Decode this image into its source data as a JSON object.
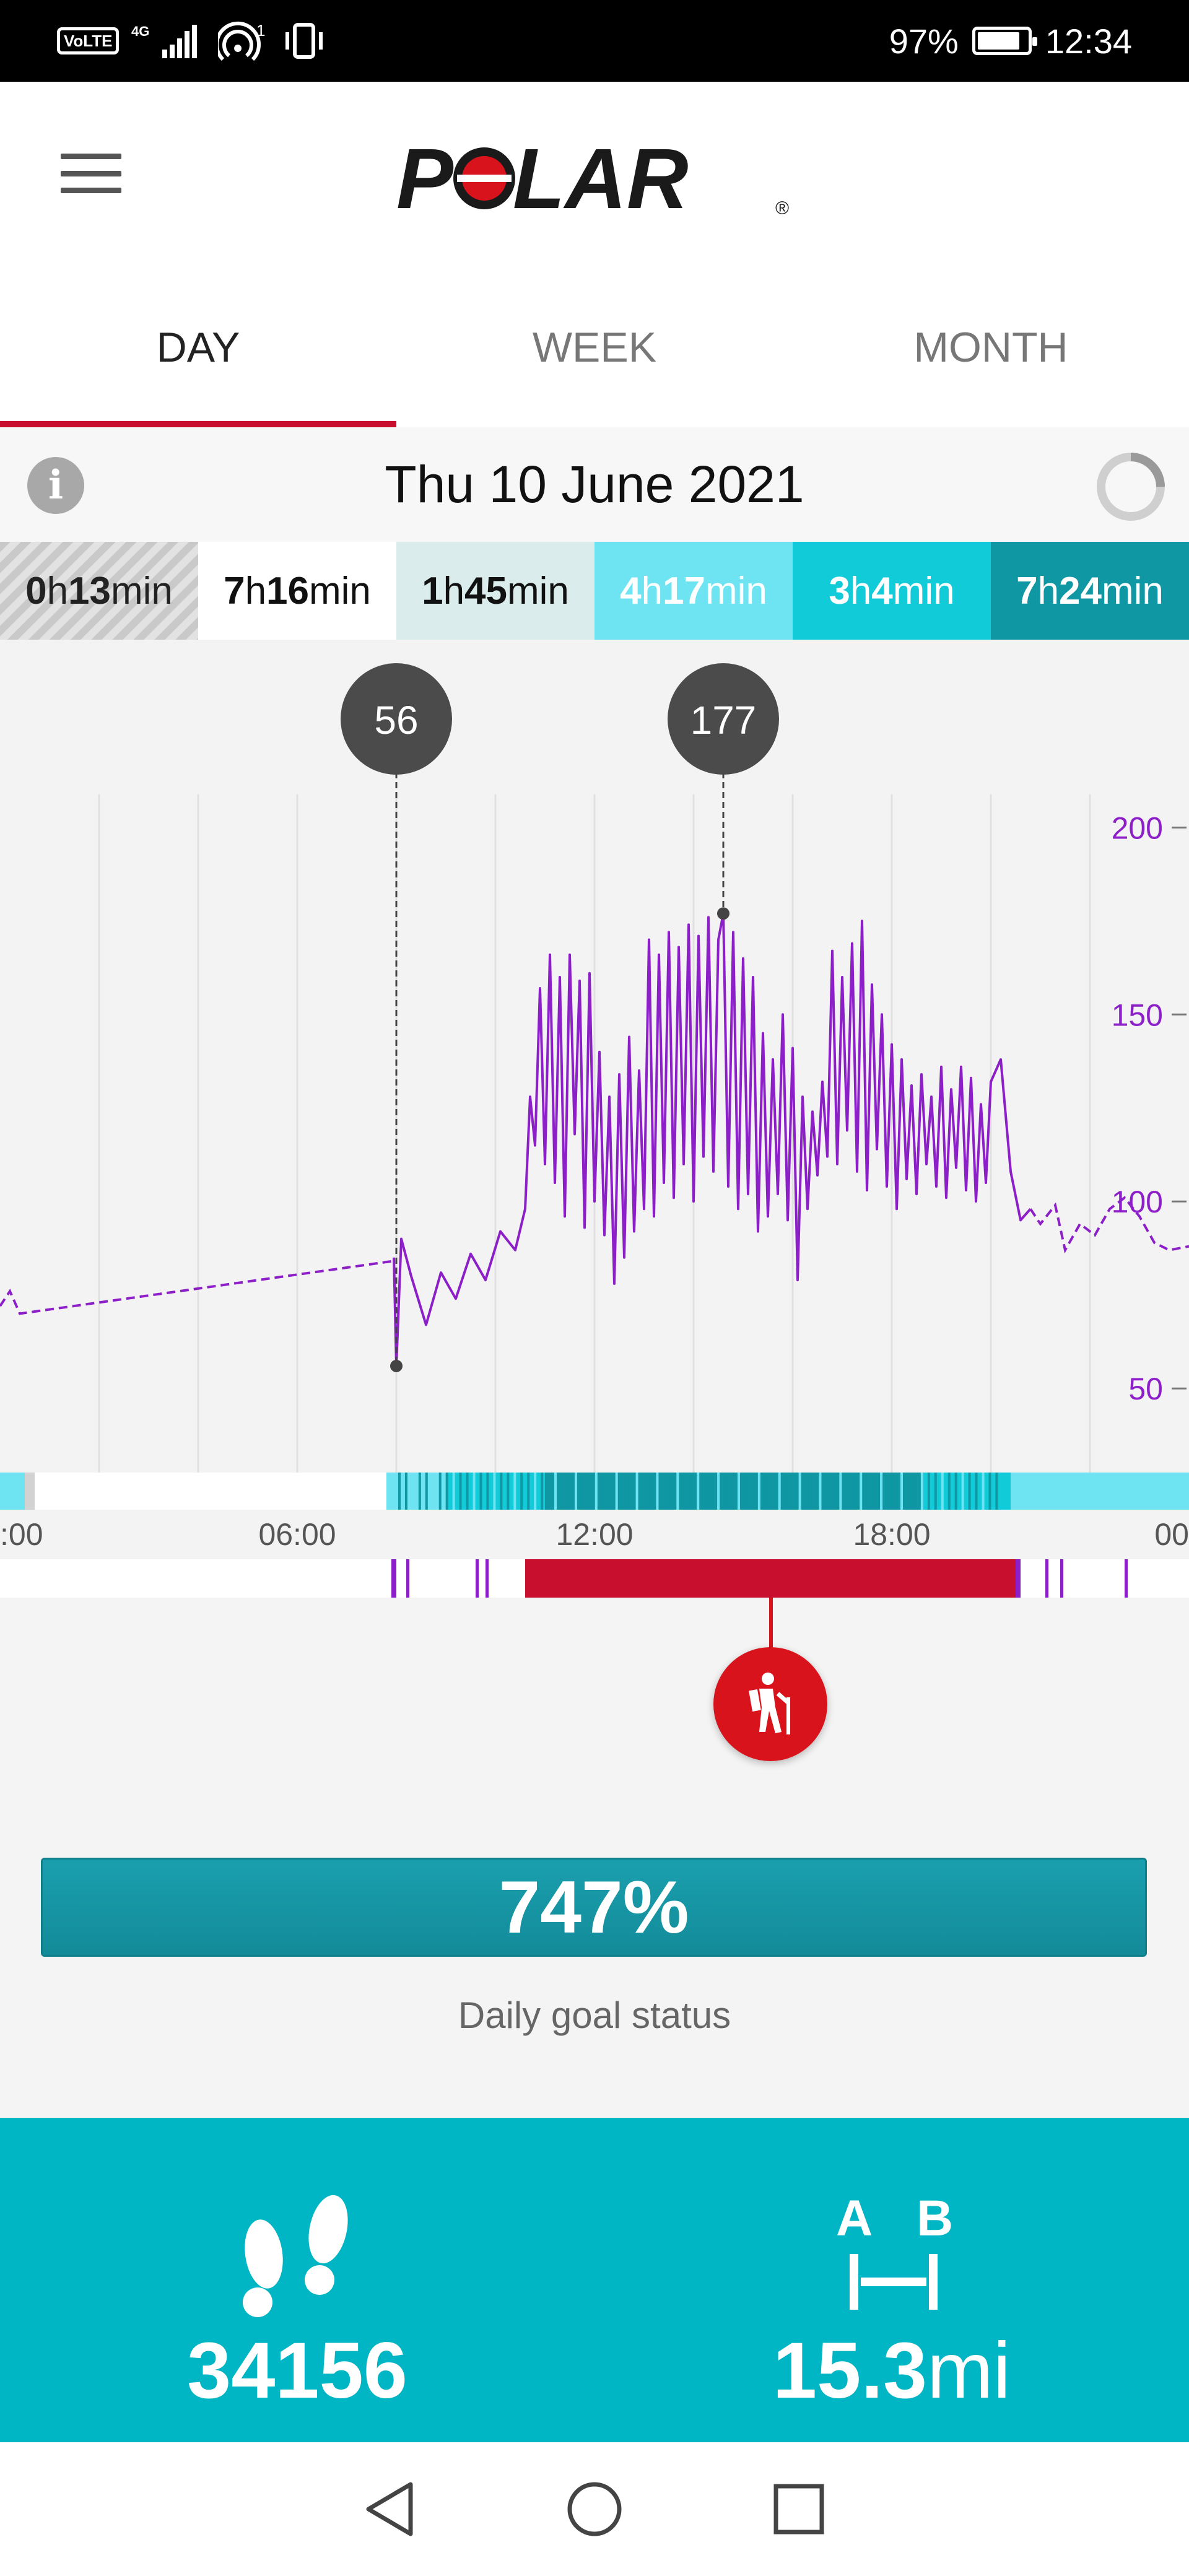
{
  "status_bar": {
    "volte": "VoLTE",
    "network": "4G",
    "hotspot_count": "1",
    "battery": "97%",
    "battery_level": 0.97,
    "time": "12:34"
  },
  "header": {
    "logo_text": "POLAR",
    "logo_mark": "®",
    "menu_icon": "hamburger-menu-icon"
  },
  "tabs": [
    {
      "label": "DAY",
      "active": true
    },
    {
      "label": "WEEK",
      "active": false
    },
    {
      "label": "MONTH",
      "active": false
    }
  ],
  "date_row": {
    "info_icon": "info-icon",
    "date": "Thu 10 June 2021",
    "sync_icon": "sync-icon"
  },
  "zones": [
    {
      "hours": "0",
      "h": "h",
      "minutes": "13",
      "unit": "min",
      "bg": "#d2d2d2",
      "fg": "#222"
    },
    {
      "hours": "7",
      "h": "h",
      "minutes": "16",
      "unit": "min",
      "bg": "#ffffff",
      "fg": "#111"
    },
    {
      "hours": "1",
      "h": "h",
      "minutes": "45",
      "unit": "min",
      "bg": "#dbecec",
      "fg": "#111"
    },
    {
      "hours": "4",
      "h": "h",
      "minutes": "17",
      "unit": "min",
      "bg": "#6ee4f2",
      "fg": "#ffffff"
    },
    {
      "hours": "3",
      "h": "h",
      "minutes": "4",
      "unit": "min",
      "bg": "#12cbd9",
      "fg": "#ffffff"
    },
    {
      "hours": "7",
      "h": "h",
      "minutes": "24",
      "unit": "min",
      "bg": "#0f97a3",
      "fg": "#ffffff"
    }
  ],
  "chart_data": {
    "type": "line",
    "title": "",
    "xlabel": "",
    "ylabel": "",
    "x_ticks": [
      ":00",
      "06:00",
      "12:00",
      "18:00",
      "00"
    ],
    "y_ticks": [
      200,
      150,
      100,
      50
    ],
    "ylim": [
      30,
      208
    ],
    "xlim_hours": [
      0,
      24
    ],
    "grid": "vertical",
    "series_color": "#8d1fc9",
    "markers": [
      {
        "label": "56",
        "time_hour": 8.0,
        "value": 56,
        "kind": "min"
      },
      {
        "label": "177",
        "time_hour": 14.6,
        "value": 177,
        "kind": "max"
      }
    ],
    "series": [
      {
        "values_dashed_start": [
          [
            0.0,
            72
          ],
          [
            0.2,
            76
          ],
          [
            0.4,
            70
          ],
          [
            7.9,
            84
          ]
        ],
        "values": [
          [
            7.95,
            85
          ],
          [
            8.0,
            56
          ],
          [
            8.1,
            90
          ],
          [
            8.3,
            80
          ],
          [
            8.6,
            67
          ],
          [
            8.9,
            81
          ],
          [
            9.2,
            74
          ],
          [
            9.5,
            86
          ],
          [
            9.8,
            79
          ],
          [
            10.1,
            92
          ],
          [
            10.4,
            87
          ],
          [
            10.6,
            98
          ],
          [
            10.7,
            128
          ],
          [
            10.8,
            115
          ],
          [
            10.9,
            157
          ],
          [
            11.0,
            110
          ],
          [
            11.1,
            166
          ],
          [
            11.2,
            105
          ],
          [
            11.3,
            160
          ],
          [
            11.4,
            96
          ],
          [
            11.5,
            166
          ],
          [
            11.6,
            118
          ],
          [
            11.7,
            159
          ],
          [
            11.8,
            93
          ],
          [
            11.9,
            161
          ],
          [
            12.0,
            100
          ],
          [
            12.1,
            140
          ],
          [
            12.2,
            91
          ],
          [
            12.3,
            128
          ],
          [
            12.4,
            78
          ],
          [
            12.5,
            134
          ],
          [
            12.6,
            85
          ],
          [
            12.7,
            144
          ],
          [
            12.8,
            92
          ],
          [
            12.9,
            135
          ],
          [
            13.0,
            98
          ],
          [
            13.1,
            170
          ],
          [
            13.2,
            96
          ],
          [
            13.3,
            166
          ],
          [
            13.4,
            105
          ],
          [
            13.5,
            172
          ],
          [
            13.6,
            101
          ],
          [
            13.7,
            168
          ],
          [
            13.8,
            110
          ],
          [
            13.9,
            174
          ],
          [
            14.0,
            100
          ],
          [
            14.1,
            171
          ],
          [
            14.2,
            112
          ],
          [
            14.3,
            176
          ],
          [
            14.4,
            108
          ],
          [
            14.5,
            170
          ],
          [
            14.6,
            177
          ],
          [
            14.7,
            104
          ],
          [
            14.8,
            172
          ],
          [
            14.9,
            98
          ],
          [
            15.0,
            165
          ],
          [
            15.1,
            102
          ],
          [
            15.2,
            160
          ],
          [
            15.3,
            92
          ],
          [
            15.4,
            145
          ],
          [
            15.5,
            96
          ],
          [
            15.6,
            138
          ],
          [
            15.7,
            102
          ],
          [
            15.8,
            150
          ],
          [
            15.9,
            95
          ],
          [
            16.0,
            141
          ],
          [
            16.1,
            79
          ],
          [
            16.2,
            128
          ],
          [
            16.3,
            98
          ],
          [
            16.4,
            124
          ],
          [
            16.5,
            107
          ],
          [
            16.6,
            132
          ],
          [
            16.7,
            112
          ],
          [
            16.8,
            167
          ],
          [
            16.9,
            110
          ],
          [
            17.0,
            160
          ],
          [
            17.1,
            119
          ],
          [
            17.2,
            169
          ],
          [
            17.3,
            108
          ],
          [
            17.4,
            175
          ],
          [
            17.5,
            103
          ],
          [
            17.6,
            158
          ],
          [
            17.7,
            114
          ],
          [
            17.8,
            150
          ],
          [
            17.9,
            104
          ],
          [
            18.0,
            142
          ],
          [
            18.1,
            98
          ],
          [
            18.2,
            138
          ],
          [
            18.3,
            106
          ],
          [
            18.4,
            131
          ],
          [
            18.5,
            102
          ],
          [
            18.6,
            134
          ],
          [
            18.7,
            110
          ],
          [
            18.8,
            128
          ],
          [
            18.9,
            104
          ],
          [
            19.0,
            136
          ],
          [
            19.1,
            101
          ],
          [
            19.2,
            130
          ],
          [
            19.3,
            109
          ],
          [
            19.4,
            136
          ],
          [
            19.5,
            103
          ],
          [
            19.6,
            133
          ],
          [
            19.7,
            100
          ],
          [
            19.8,
            126
          ],
          [
            19.9,
            105
          ],
          [
            20.0,
            132
          ],
          [
            20.2,
            138
          ],
          [
            20.4,
            108
          ],
          [
            20.6,
            95
          ],
          [
            20.8,
            98
          ]
        ],
        "values_dashed_end": [
          [
            20.8,
            98
          ],
          [
            21.0,
            94
          ],
          [
            21.3,
            99
          ],
          [
            21.5,
            87
          ],
          [
            21.8,
            94
          ],
          [
            22.1,
            91
          ],
          [
            22.4,
            98
          ],
          [
            22.7,
            101
          ],
          [
            23.0,
            96
          ],
          [
            23.3,
            89
          ],
          [
            23.6,
            87
          ],
          [
            24.0,
            88
          ]
        ]
      }
    ],
    "zone_strip": [
      {
        "from": 0.0,
        "to": 0.5,
        "color": "#6ee4f2"
      },
      {
        "from": 0.5,
        "to": 0.7,
        "color": "#d2d2d2"
      },
      {
        "from": 0.7,
        "to": 7.8,
        "color": "#ffffff"
      },
      {
        "from": 7.8,
        "to": 9.0,
        "color": "#6ee4f2"
      },
      {
        "from": 9.0,
        "to": 11.0,
        "color": "#12cbd9"
      },
      {
        "from": 11.0,
        "to": 18.6,
        "color": "#0f97a3"
      },
      {
        "from": 18.6,
        "to": 20.4,
        "color": "#12cbd9"
      },
      {
        "from": 20.4,
        "to": 24.0,
        "color": "#6ee4f2"
      }
    ],
    "activity_strip": [
      {
        "from": 7.9,
        "to": 8.0,
        "color": "#8d1fc9"
      },
      {
        "from": 8.2,
        "to": 8.25,
        "color": "#8d1fc9"
      },
      {
        "from": 9.6,
        "to": 9.65,
        "color": "#8d1fc9"
      },
      {
        "from": 9.8,
        "to": 9.85,
        "color": "#8d1fc9"
      },
      {
        "from": 10.6,
        "to": 20.5,
        "color": "#c8102e"
      },
      {
        "from": 20.5,
        "to": 20.6,
        "color": "#8d1fc9"
      },
      {
        "from": 21.1,
        "to": 21.15,
        "color": "#8d1fc9"
      },
      {
        "from": 21.4,
        "to": 21.45,
        "color": "#8d1fc9"
      },
      {
        "from": 22.7,
        "to": 22.75,
        "color": "#8d1fc9"
      }
    ]
  },
  "activity": {
    "marker_icon": "hiking-icon",
    "goal_percent": "747%",
    "goal_value": 7.47,
    "goal_label": "Daily goal status"
  },
  "stats": {
    "steps_icon": "footprints-icon",
    "steps": "34156",
    "distance_icon_label_a": "A",
    "distance_icon_label_b": "B",
    "distance_value": "15.3",
    "distance_unit": "mi"
  },
  "nav": {
    "back_icon": "back-triangle-icon",
    "home_icon": "home-circle-icon",
    "recents_icon": "recents-square-icon"
  }
}
